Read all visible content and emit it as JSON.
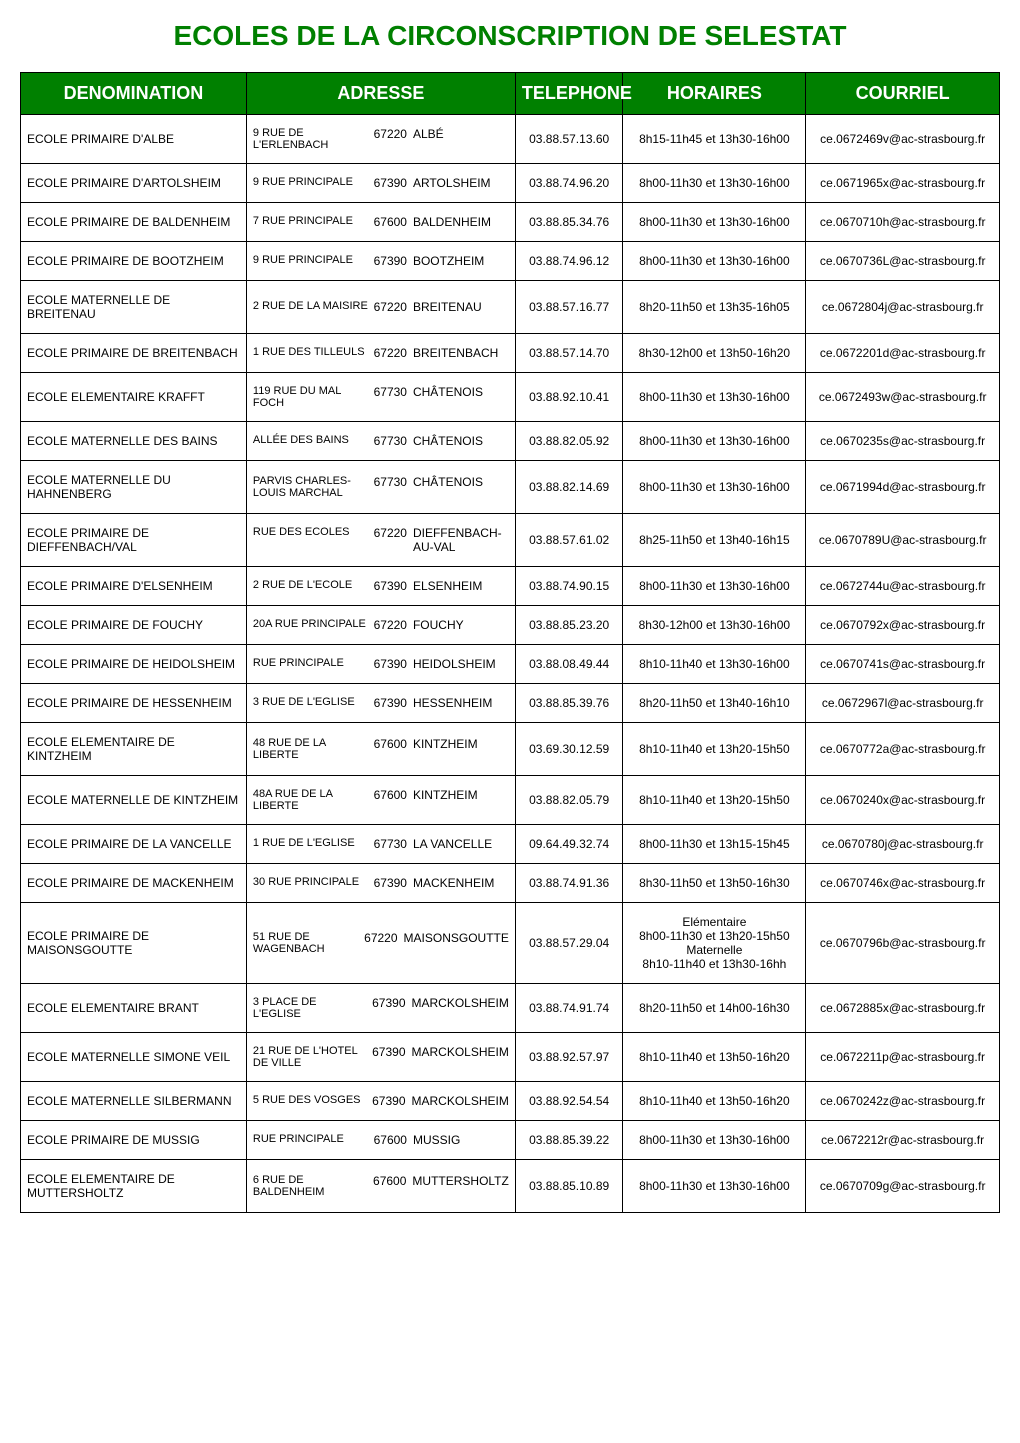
{
  "title": "ECOLES DE LA CIRCONSCRIPTION DE SELESTAT",
  "headers": {
    "denomination": "DENOMINATION",
    "adresse": "ADRESSE",
    "telephone": "TELEPHONE",
    "horaires": "HORAIRES",
    "courriel": "COURRIEL"
  },
  "styling": {
    "title_color": "#008000",
    "title_fontsize": 28,
    "header_bg": "#008000",
    "header_fg": "#ffffff",
    "header_fontsize": 18,
    "cell_fontsize": 12,
    "border_color": "#000000",
    "background_color": "#ffffff"
  },
  "rows": [
    {
      "denom": "ECOLE PRIMAIRE D'ALBE",
      "street": "9 RUE DE L'ERLENBACH",
      "cp": "67220",
      "city": "ALBÉ",
      "tel": "03.88.57.13.60",
      "horaires": "8h15-11h45 et 13h30-16h00",
      "courriel": "ce.0672469v@ac-strasbourg.fr"
    },
    {
      "denom": "ECOLE PRIMAIRE D'ARTOLSHEIM",
      "street": "9 RUE PRINCIPALE",
      "cp": "67390",
      "city": "ARTOLSHEIM",
      "tel": "03.88.74.96.20",
      "horaires": "8h00-11h30 et 13h30-16h00",
      "courriel": "ce.0671965x@ac-strasbourg.fr"
    },
    {
      "denom": "ECOLE PRIMAIRE DE BALDENHEIM",
      "street": "7 RUE PRINCIPALE",
      "cp": "67600",
      "city": "BALDENHEIM",
      "tel": "03.88.85.34.76",
      "horaires": "8h00-11h30 et 13h30-16h00",
      "courriel": "ce.0670710h@ac-strasbourg.fr"
    },
    {
      "denom": "ECOLE PRIMAIRE DE BOOTZHEIM",
      "street": "9 RUE PRINCIPALE",
      "cp": "67390",
      "city": "BOOTZHEIM",
      "tel": "03.88.74.96.12",
      "horaires": "8h00-11h30 et 13h30-16h00",
      "courriel": "ce.0670736L@ac-strasbourg.fr"
    },
    {
      "denom": "ECOLE MATERNELLE DE BREITENAU",
      "street": "2 RUE DE LA MAISIRE",
      "cp": "67220",
      "city": "BREITENAU",
      "tel": "03.88.57.16.77",
      "horaires": "8h20-11h50 et 13h35-16h05",
      "courriel": "ce.0672804j@ac-strasbourg.fr"
    },
    {
      "denom": "ECOLE PRIMAIRE DE BREITENBACH",
      "street": "1 RUE DES TILLEULS",
      "cp": "67220",
      "city": "BREITENBACH",
      "tel": "03.88.57.14.70",
      "horaires": "8h30-12h00 et 13h50-16h20",
      "courriel": "ce.0672201d@ac-strasbourg.fr"
    },
    {
      "denom": "ECOLE ELEMENTAIRE KRAFFT",
      "street": "119 RUE DU MAL FOCH",
      "cp": "67730",
      "city": "CHÂTENOIS",
      "tel": "03.88.92.10.41",
      "horaires": "8h00-11h30 et 13h30-16h00",
      "courriel": "ce.0672493w@ac-strasbourg.fr"
    },
    {
      "denom": "ECOLE MATERNELLE DES BAINS",
      "street": "ALLÉE DES BAINS",
      "cp": "67730",
      "city": "CHÂTENOIS",
      "tel": "03.88.82.05.92",
      "horaires": "8h00-11h30 et 13h30-16h00",
      "courriel": "ce.0670235s@ac-strasbourg.fr"
    },
    {
      "denom": "ECOLE MATERNELLE DU HAHNENBERG",
      "street": "PARVIS CHARLES-LOUIS MARCHAL",
      "cp": "67730",
      "city": "CHÂTENOIS",
      "tel": "03.88.82.14.69",
      "horaires": "8h00-11h30 et 13h30-16h00",
      "courriel": "ce.0671994d@ac-strasbourg.fr"
    },
    {
      "denom": "ECOLE PRIMAIRE DE DIEFFENBACH/VAL",
      "street": "RUE DES ECOLES",
      "cp": "67220",
      "city": "DIEFFENBACH-AU-VAL",
      "tel": "03.88.57.61.02",
      "horaires": "8h25-11h50 et 13h40-16h15",
      "courriel": "ce.0670789U@ac-strasbourg.fr"
    },
    {
      "denom": "ECOLE PRIMAIRE D'ELSENHEIM",
      "street": "2 RUE DE L'ECOLE",
      "cp": "67390",
      "city": "ELSENHEIM",
      "tel": "03.88.74.90.15",
      "horaires": "8h00-11h30 et 13h30-16h00",
      "courriel": "ce.0672744u@ac-strasbourg.fr"
    },
    {
      "denom": "ECOLE PRIMAIRE DE FOUCHY",
      "street": "20A RUE PRINCIPALE",
      "cp": "67220",
      "city": "FOUCHY",
      "tel": "03.88.85.23.20",
      "horaires": "8h30-12h00 et 13h30-16h00",
      "courriel": "ce.0670792x@ac-strasbourg.fr"
    },
    {
      "denom": "ECOLE PRIMAIRE DE HEIDOLSHEIM",
      "street": "RUE PRINCIPALE",
      "cp": "67390",
      "city": "HEIDOLSHEIM",
      "tel": "03.88.08.49.44",
      "horaires": "8h10-11h40 et 13h30-16h00",
      "courriel": "ce.0670741s@ac-strasbourg.fr"
    },
    {
      "denom": "ECOLE PRIMAIRE DE HESSENHEIM",
      "street": "3 RUE DE L'EGLISE",
      "cp": "67390",
      "city": "HESSENHEIM",
      "tel": "03.88.85.39.76",
      "horaires": "8h20-11h50 et 13h40-16h10",
      "courriel": "ce.0672967l@ac-strasbourg.fr"
    },
    {
      "denom": "ECOLE ELEMENTAIRE DE KINTZHEIM",
      "street": "48 RUE DE LA LIBERTE",
      "cp": "67600",
      "city": "KINTZHEIM",
      "tel": "03.69.30.12.59",
      "horaires": "8h10-11h40 et 13h20-15h50",
      "courriel": "ce.0670772a@ac-strasbourg.fr"
    },
    {
      "denom": "ECOLE MATERNELLE DE KINTZHEIM",
      "street": "48A RUE DE LA LIBERTE",
      "cp": "67600",
      "city": "KINTZHEIM",
      "tel": "03.88.82.05.79",
      "horaires": "8h10-11h40 et 13h20-15h50",
      "courriel": "ce.0670240x@ac-strasbourg.fr"
    },
    {
      "denom": "ECOLE PRIMAIRE DE LA VANCELLE",
      "street": "1 RUE DE L'EGLISE",
      "cp": "67730",
      "city": "LA VANCELLE",
      "tel": "09.64.49.32.74",
      "horaires": "8h00-11h30 et 13h15-15h45",
      "courriel": "ce.0670780j@ac-strasbourg.fr"
    },
    {
      "denom": "ECOLE PRIMAIRE DE MACKENHEIM",
      "street": "30 RUE PRINCIPALE",
      "cp": "67390",
      "city": "MACKENHEIM",
      "tel": "03.88.74.91.36",
      "horaires": "8h30-11h50 et 13h50-16h30",
      "courriel": "ce.0670746x@ac-strasbourg.fr"
    },
    {
      "denom": "ECOLE PRIMAIRE DE MAISONSGOUTTE",
      "street": "51 RUE DE WAGENBACH",
      "cp": "67220",
      "city": "MAISONSGOUTTE",
      "tel": "03.88.57.29.04",
      "horaires": "Elémentaire\n8h00-11h30 et 13h20-15h50\nMaternelle\n8h10-11h40 et 13h30-16hh",
      "courriel": "ce.0670796b@ac-strasbourg.fr"
    },
    {
      "denom": "ECOLE ELEMENTAIRE BRANT",
      "street": "3 PLACE DE L'EGLISE",
      "cp": "67390",
      "city": "MARCKOLSHEIM",
      "tel": "03.88.74.91.74",
      "horaires": "8h20-11h50 et 14h00-16h30",
      "courriel": "ce.0672885x@ac-strasbourg.fr"
    },
    {
      "denom": "ECOLE MATERNELLE SIMONE VEIL",
      "street": "21 RUE DE L'HOTEL DE VILLE",
      "cp": "67390",
      "city": "MARCKOLSHEIM",
      "tel": "03.88.92.57.97",
      "horaires": "8h10-11h40 et 13h50-16h20",
      "courriel": "ce.0672211p@ac-strasbourg.fr"
    },
    {
      "denom": "ECOLE MATERNELLE SILBERMANN",
      "street": "5 RUE DES VOSGES",
      "cp": "67390",
      "city": "MARCKOLSHEIM",
      "tel": "03.88.92.54.54",
      "horaires": "8h10-11h40 et 13h50-16h20",
      "courriel": "ce.0670242z@ac-strasbourg.fr"
    },
    {
      "denom": "ECOLE PRIMAIRE DE MUSSIG",
      "street": "RUE PRINCIPALE",
      "cp": "67600",
      "city": "MUSSIG",
      "tel": "03.88.85.39.22",
      "horaires": "8h00-11h30 et 13h30-16h00",
      "courriel": "ce.0672212r@ac-strasbourg.fr"
    },
    {
      "denom": "ECOLE ELEMENTAIRE DE MUTTERSHOLTZ",
      "street": "6 RUE DE BALDENHEIM",
      "cp": "67600",
      "city": "MUTTERSHOLTZ",
      "tel": "03.88.85.10.89",
      "horaires": "8h00-11h30 et 13h30-16h00",
      "courriel": "ce.0670709g@ac-strasbourg.fr"
    }
  ]
}
